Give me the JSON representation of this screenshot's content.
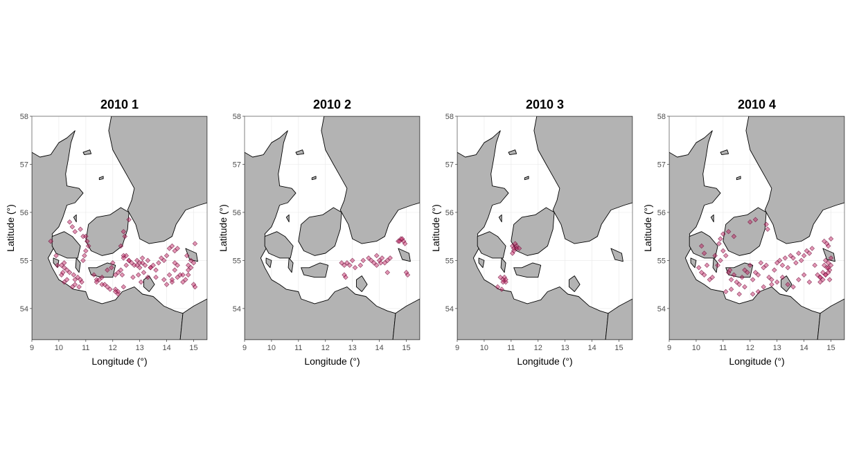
{
  "figure": {
    "x_axis_label": "Longitude (°)",
    "y_axis_label": "Latitude (°)",
    "x_ticks": [
      9,
      10,
      11,
      12,
      13,
      14,
      15
    ],
    "y_ticks": [
      54,
      55,
      56,
      57,
      58
    ],
    "x_range": [
      9,
      15.5
    ],
    "y_range": [
      53.35,
      58
    ],
    "colors": {
      "land": "#b3b3b3",
      "sea": "#ffffff",
      "points": "#c2185b",
      "point_outline": "#6d0f3a"
    }
  },
  "chart_data": [
    {
      "type": "scatter",
      "title": "2010 1",
      "x": [
        9.7,
        9.9,
        9.95,
        10.1,
        10.2,
        10.2,
        10.3,
        10.4,
        10.55,
        10.6,
        10.7,
        10.8,
        10.85,
        10.9,
        10.95,
        11.0,
        10.2,
        10.3,
        10.5,
        10.6,
        10.75,
        10.1,
        10.15,
        10.4,
        10.5,
        10.6,
        10.8,
        10.9,
        11.05,
        11.1,
        11.0,
        11.3,
        11.4,
        11.5,
        11.4,
        11.6,
        11.7,
        11.8,
        11.9,
        11.6,
        11.8,
        11.95,
        12.0,
        12.1,
        12.2,
        12.3,
        12.35,
        12.5,
        12.6,
        12.5,
        12.7,
        12.8,
        12.9,
        13.0,
        13.0,
        13.1,
        13.2,
        13.3,
        12.75,
        12.95,
        13.15,
        13.4,
        13.5,
        13.6,
        13.7,
        13.8,
        13.9,
        14.0,
        14.1,
        14.2,
        14.3,
        14.4,
        13.9,
        14.0,
        14.2,
        14.4,
        14.5,
        14.6,
        14.7,
        14.8,
        14.9,
        15.0,
        15.05,
        14.1,
        14.2,
        14.3,
        14.4,
        14.6,
        14.8,
        14.9,
        15.0,
        14.75,
        14.8,
        15.05,
        12.1,
        12.2,
        12.4,
        12.45,
        12.6,
        12.1,
        12.2,
        12.4,
        12.6,
        13.4,
        13.6,
        12.9,
        13.1,
        13.3,
        14.3,
        13.05,
        12.4,
        12.3,
        12.4
      ],
      "y": [
        55.4,
        55.1,
        54.9,
        54.9,
        54.95,
        54.85,
        54.8,
        54.75,
        54.7,
        54.6,
        54.65,
        54.6,
        54.55,
        55.0,
        55.1,
        55.2,
        54.55,
        54.6,
        54.45,
        54.5,
        54.45,
        54.7,
        54.75,
        55.8,
        55.7,
        55.6,
        55.65,
        55.5,
        55.4,
        55.3,
        55.5,
        54.7,
        54.6,
        54.6,
        54.55,
        54.5,
        54.5,
        54.45,
        54.4,
        54.65,
        54.8,
        54.85,
        54.95,
        54.7,
        54.75,
        54.8,
        54.7,
        54.9,
        55.0,
        55.1,
        54.95,
        54.9,
        55.0,
        54.95,
        54.85,
        55.05,
        54.9,
        55.0,
        54.65,
        54.7,
        54.75,
        54.85,
        54.9,
        54.8,
        54.95,
        55.05,
        55.0,
        55.1,
        55.25,
        55.3,
        55.2,
        55.25,
        54.6,
        54.5,
        54.55,
        54.65,
        54.7,
        54.55,
        54.6,
        54.7,
        54.85,
        54.95,
        55.35,
        54.7,
        54.6,
        54.8,
        54.9,
        54.7,
        54.8,
        55.0,
        54.5,
        55.1,
        54.9,
        54.45,
        54.4,
        54.35,
        54.45,
        55.5,
        55.85,
        54.35,
        54.3,
        55.1,
        55.0,
        54.85,
        54.65,
        54.9,
        54.95,
        54.65,
        54.95,
        54.55,
        55.05,
        55.3,
        55.6
      ],
      "xlabel": "Longitude (°)",
      "ylabel": "Latitude (°)",
      "xlim": [
        9,
        15.5
      ],
      "ylim": [
        53.35,
        58
      ]
    },
    {
      "type": "scatter",
      "title": "2010 2",
      "x": [
        12.6,
        12.7,
        12.8,
        12.9,
        13.0,
        13.1,
        13.3,
        13.4,
        13.6,
        13.7,
        13.8,
        13.9,
        14.0,
        14.1,
        14.2,
        14.3,
        14.4,
        12.7,
        12.75,
        13.9,
        14.05,
        14.3,
        14.7,
        14.8,
        14.9,
        14.95,
        14.85,
        14.75,
        15.0,
        15.05
      ],
      "y": [
        54.95,
        54.9,
        54.95,
        54.9,
        55.0,
        54.85,
        54.9,
        55.0,
        55.05,
        55.0,
        54.95,
        55.1,
        55.0,
        55.05,
        54.95,
        55.0,
        55.05,
        54.7,
        54.65,
        54.9,
        54.95,
        54.75,
        55.4,
        55.45,
        55.4,
        55.35,
        55.45,
        55.4,
        54.75,
        54.7
      ],
      "xlabel": "Longitude (°)",
      "ylabel": "Latitude (°)",
      "xlim": [
        9,
        15.5
      ],
      "ylim": [
        53.35,
        58
      ]
    },
    {
      "type": "scatter",
      "title": "2010 3",
      "x": [
        10.6,
        10.7,
        10.75,
        10.8,
        10.7,
        10.8,
        11.05,
        11.1,
        11.15,
        11.2,
        11.1,
        11.2,
        11.05,
        11.3,
        10.5,
        10.65
      ],
      "y": [
        54.65,
        54.6,
        54.65,
        54.55,
        54.55,
        54.6,
        55.3,
        55.25,
        55.35,
        55.3,
        55.2,
        55.25,
        55.15,
        55.25,
        54.45,
        54.4
      ],
      "xlabel": "Longitude (°)",
      "ylabel": "Latitude (°)",
      "xlim": [
        9,
        15.5
      ],
      "ylim": [
        53.35,
        58
      ]
    },
    {
      "type": "scatter",
      "title": "2010 4",
      "x": [
        10.1,
        10.2,
        10.3,
        10.4,
        10.5,
        10.6,
        10.2,
        10.3,
        10.7,
        10.8,
        10.9,
        11.0,
        11.1,
        11.2,
        11.25,
        11.3,
        11.4,
        11.5,
        11.6,
        11.7,
        11.8,
        11.9,
        12.0,
        12.1,
        12.2,
        12.3,
        12.4,
        12.5,
        12.6,
        12.7,
        12.8,
        12.9,
        13.0,
        13.1,
        13.2,
        13.3,
        13.4,
        13.5,
        13.6,
        13.7,
        13.8,
        13.9,
        14.0,
        14.1,
        14.2,
        14.3,
        14.4,
        14.5,
        14.6,
        14.7,
        14.8,
        14.85,
        14.9,
        14.95,
        15.0,
        14.8,
        14.9,
        14.95,
        14.75,
        14.85,
        15.0,
        14.9,
        14.7,
        14.6,
        11.1,
        11.3,
        11.6,
        11.8,
        12.1,
        12.3,
        12.5,
        12.8,
        13.0,
        13.2,
        13.4,
        13.6,
        13.8,
        14.0,
        14.2,
        11.4,
        11.2,
        11.0,
        10.9,
        10.85,
        12.6,
        12.65,
        12.2,
        12.0,
        14.6,
        14.8,
        14.9,
        14.75,
        15.0
      ],
      "y": [
        54.85,
        54.75,
        54.7,
        54.9,
        54.6,
        54.65,
        55.3,
        55.15,
        55.1,
        54.9,
        55.0,
        55.2,
        55.1,
        54.75,
        54.8,
        54.6,
        54.7,
        54.55,
        54.5,
        54.65,
        54.8,
        54.75,
        54.9,
        54.6,
        54.75,
        54.7,
        54.95,
        54.85,
        54.9,
        54.65,
        54.6,
        54.8,
        54.95,
        55.0,
        54.9,
        55.05,
        54.85,
        55.1,
        55.05,
        54.95,
        55.15,
        55.0,
        55.1,
        55.2,
        55.15,
        55.25,
        54.9,
        54.7,
        54.65,
        54.75,
        54.7,
        54.85,
        54.95,
        54.8,
        54.9,
        55.0,
        54.75,
        54.6,
        55.4,
        55.35,
        55.45,
        55.3,
        54.6,
        54.55,
        54.35,
        54.4,
        54.3,
        54.45,
        54.3,
        54.35,
        54.45,
        54.5,
        54.55,
        54.65,
        54.5,
        54.45,
        54.6,
        54.7,
        54.55,
        55.5,
        55.6,
        55.55,
        55.45,
        55.35,
        55.75,
        55.65,
        55.85,
        55.8,
        54.65,
        54.7,
        54.85,
        54.9,
        55.05
      ],
      "xlabel": "Longitude (°)",
      "ylabel": "Latitude (°)",
      "xlim": [
        9,
        15.5
      ],
      "ylim": [
        53.35,
        58
      ]
    }
  ]
}
